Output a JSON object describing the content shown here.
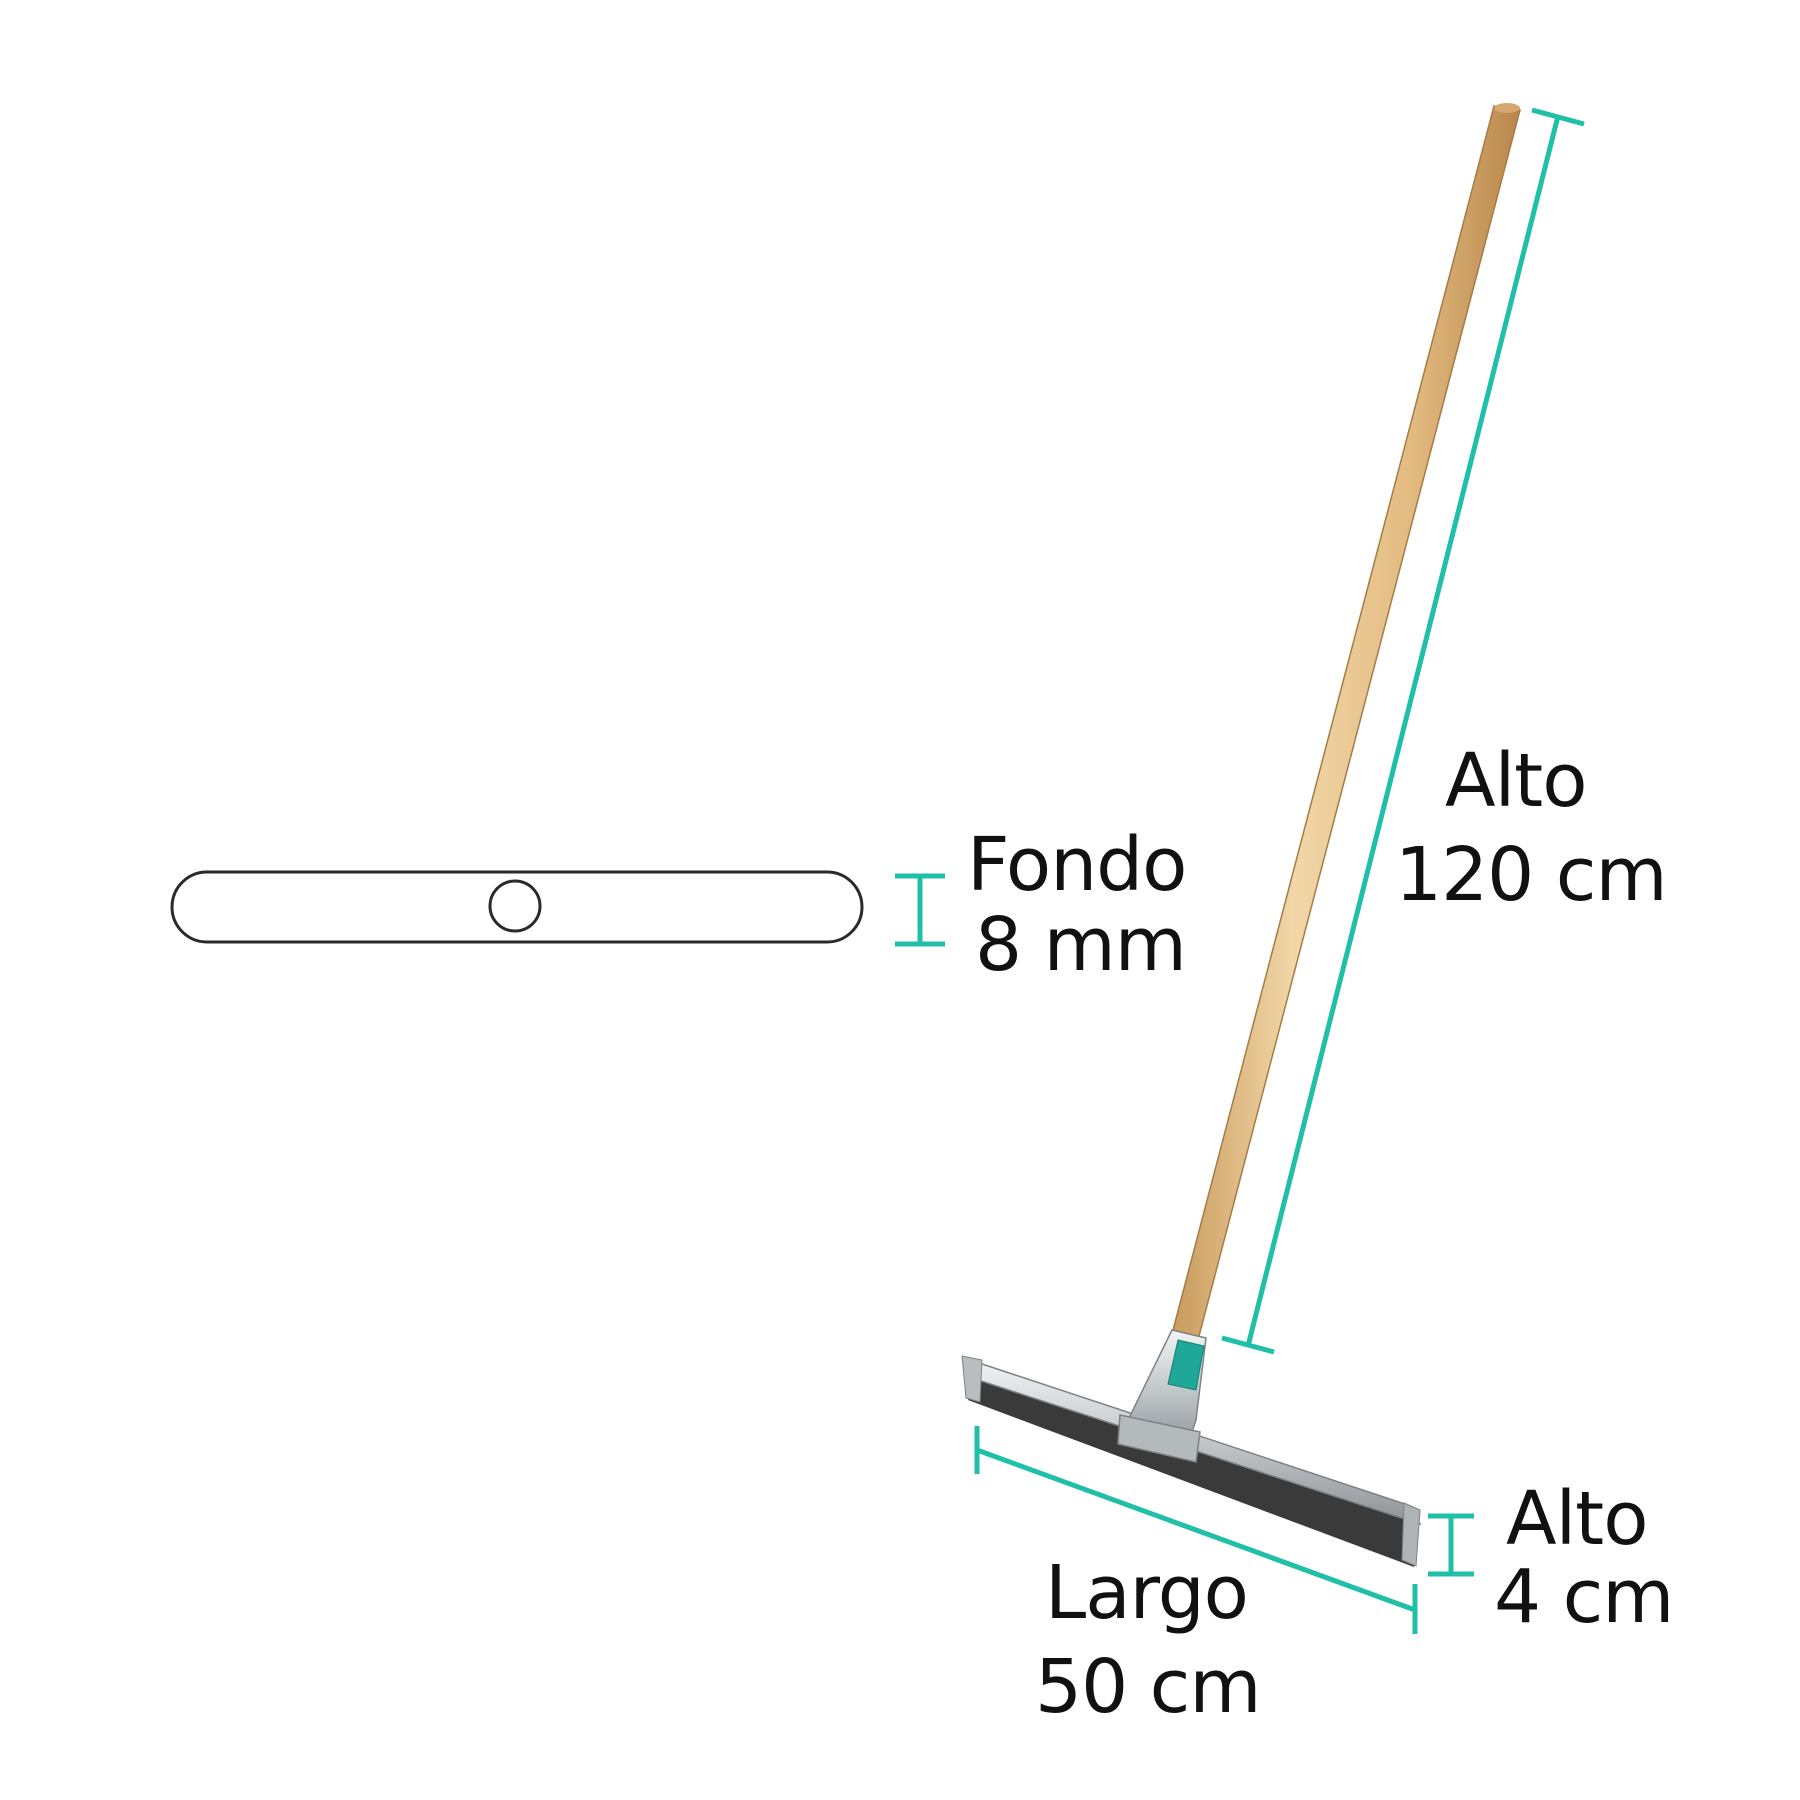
{
  "colors": {
    "accent": "#1fbfa8",
    "outline": "#2a2a2a",
    "wood": "#e3bf88",
    "metal": "#c9cdd0",
    "rubber": "#3a3a3a"
  },
  "dimensions": {
    "height": {
      "label": "Alto",
      "value": "120 cm"
    },
    "depth": {
      "label": "Fondo",
      "value": "8 mm"
    },
    "length": {
      "label": "Largo",
      "value": "50 cm"
    },
    "blade_height": {
      "label": "Alto",
      "value": "4 cm"
    }
  }
}
